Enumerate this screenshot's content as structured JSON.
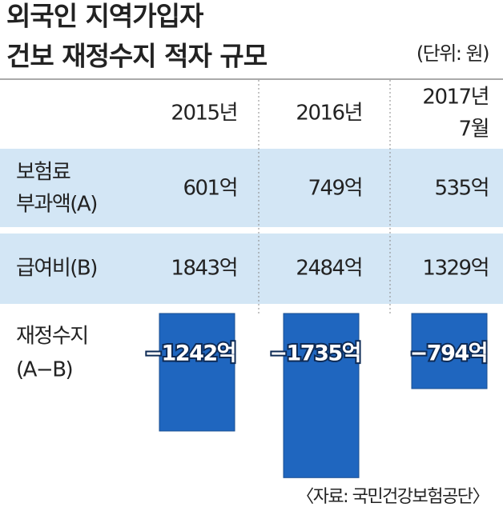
{
  "header": {
    "title": [
      "외국인 지역가입자",
      "건보 재정수지 적자 규모"
    ],
    "unit": "(단위: 원)"
  },
  "table": {
    "columns": [
      [
        "2015년"
      ],
      [
        "2016년"
      ],
      [
        "2017년",
        "7월"
      ]
    ],
    "rows": [
      {
        "label": [
          "보험료",
          "부과액(A)"
        ],
        "cells": [
          "601억",
          "749억",
          "535억"
        ]
      },
      {
        "label": [
          "급여비(B)"
        ],
        "cells": [
          "1843억",
          "2484억",
          "1329억"
        ]
      }
    ]
  },
  "chart_data": {
    "type": "bar",
    "label": [
      "재정수지",
      "(A−B)"
    ],
    "values": [
      -1242,
      -1735,
      -794
    ],
    "value_labels": [
      "−1242억",
      "−1735억",
      "−794억"
    ],
    "color": "#1f66bf",
    "ylim": [
      -1800,
      0
    ]
  },
  "source": "〈자료: 국민건강보험공단〉"
}
